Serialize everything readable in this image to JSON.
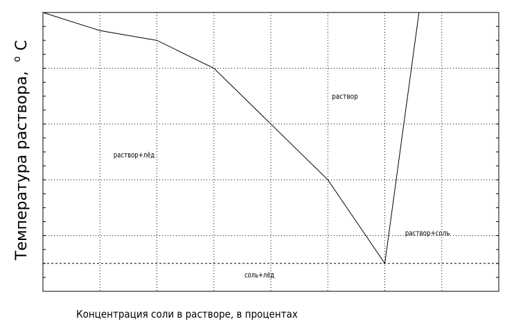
{
  "chart_data": {
    "type": "line",
    "title": "",
    "xlabel": "Концентрация соли в растворе, в процентах",
    "ylabel": "Температура раствора,",
    "ylabel_unit": "C",
    "ylabel_unit_sup": "o",
    "xlim": [
      0,
      8
    ],
    "ylim": [
      0,
      10
    ],
    "grid": true,
    "grid_x": [
      1,
      2,
      3,
      4,
      5,
      6,
      7
    ],
    "grid_y": [
      2,
      4,
      6,
      8
    ],
    "series": [
      {
        "values_x": [
          0,
          1,
          2,
          3,
          4,
          5,
          6,
          6.6
        ],
        "values_y": [
          10,
          9.35,
          9.0,
          8.0,
          6.0,
          4.0,
          1.0,
          10.0
        ]
      }
    ],
    "eutectic_line": {
      "y": 1.0,
      "style": "dashed"
    },
    "regions": [
      {
        "label": "раствор",
        "x": 5.3,
        "y": 6.9
      },
      {
        "label": "раствор+лёд",
        "x": 1.6,
        "y": 4.8
      },
      {
        "label": "раствор+соль",
        "x": 6.75,
        "y": 2.0
      },
      {
        "label": "соль+лёд",
        "x": 3.8,
        "y": 0.5
      }
    ]
  }
}
